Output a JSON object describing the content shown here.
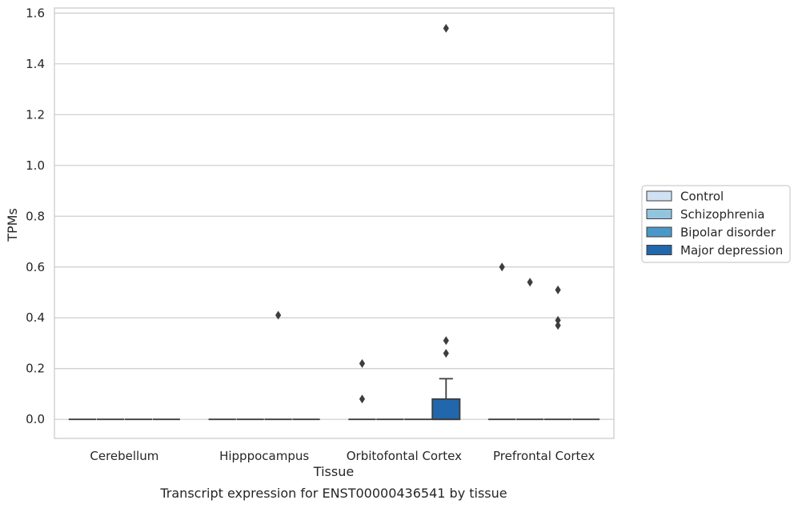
{
  "chart_data": {
    "type": "box",
    "xlabel": "Tissue",
    "ylabel": "TPMs",
    "caption": "Transcript expression for ENST00000436541 by tissue",
    "ylim": [
      -0.075,
      1.62
    ],
    "yticks": [
      "0.0",
      "0.2",
      "0.4",
      "0.6",
      "0.8",
      "1.0",
      "1.2",
      "1.4",
      "1.6"
    ],
    "grid": "horizontal",
    "legend_position": "right",
    "categories": [
      "Cerebellum",
      "Hipppocampus",
      "Orbitofontal Cortex",
      "Prefrontal Cortex"
    ],
    "series": [
      {
        "name": "Control",
        "color": "#cfe1f2",
        "boxes": [
          {
            "q1": 0,
            "median": 0,
            "q3": 0,
            "whisker_low": 0,
            "whisker_high": 0,
            "outliers": []
          },
          {
            "q1": 0,
            "median": 0,
            "q3": 0,
            "whisker_low": 0,
            "whisker_high": 0,
            "outliers": []
          },
          {
            "q1": 0,
            "median": 0,
            "q3": 0,
            "whisker_low": 0,
            "whisker_high": 0,
            "outliers": [
              0.22,
              0.08
            ]
          },
          {
            "q1": 0,
            "median": 0,
            "q3": 0,
            "whisker_low": 0,
            "whisker_high": 0,
            "outliers": [
              0.6
            ]
          }
        ]
      },
      {
        "name": "Schizophrenia",
        "color": "#93c4de",
        "boxes": [
          {
            "q1": 0,
            "median": 0,
            "q3": 0,
            "whisker_low": 0,
            "whisker_high": 0,
            "outliers": []
          },
          {
            "q1": 0,
            "median": 0,
            "q3": 0,
            "whisker_low": 0,
            "whisker_high": 0,
            "outliers": []
          },
          {
            "q1": 0,
            "median": 0,
            "q3": 0,
            "whisker_low": 0,
            "whisker_high": 0,
            "outliers": []
          },
          {
            "q1": 0,
            "median": 0,
            "q3": 0,
            "whisker_low": 0,
            "whisker_high": 0,
            "outliers": [
              0.54
            ]
          }
        ]
      },
      {
        "name": "Bipolar disorder",
        "color": "#4a98c9",
        "boxes": [
          {
            "q1": 0,
            "median": 0,
            "q3": 0,
            "whisker_low": 0,
            "whisker_high": 0,
            "outliers": []
          },
          {
            "q1": 0,
            "median": 0,
            "q3": 0,
            "whisker_low": 0,
            "whisker_high": 0,
            "outliers": [
              0.41
            ]
          },
          {
            "q1": 0,
            "median": 0,
            "q3": 0,
            "whisker_low": 0,
            "whisker_high": 0,
            "outliers": []
          },
          {
            "q1": 0,
            "median": 0,
            "q3": 0,
            "whisker_low": 0,
            "whisker_high": 0,
            "outliers": [
              0.51,
              0.39,
              0.37
            ]
          }
        ]
      },
      {
        "name": "Major depression",
        "color": "#2266ac",
        "boxes": [
          {
            "q1": 0,
            "median": 0,
            "q3": 0,
            "whisker_low": 0,
            "whisker_high": 0,
            "outliers": []
          },
          {
            "q1": 0,
            "median": 0,
            "q3": 0,
            "whisker_low": 0,
            "whisker_high": 0,
            "outliers": []
          },
          {
            "q1": 0,
            "median": 0,
            "q3": 0.08,
            "whisker_low": 0,
            "whisker_high": 0.16,
            "outliers": [
              1.54,
              0.31,
              0.26
            ]
          },
          {
            "q1": 0,
            "median": 0,
            "q3": 0,
            "whisker_low": 0,
            "whisker_high": 0,
            "outliers": []
          }
        ]
      }
    ]
  }
}
